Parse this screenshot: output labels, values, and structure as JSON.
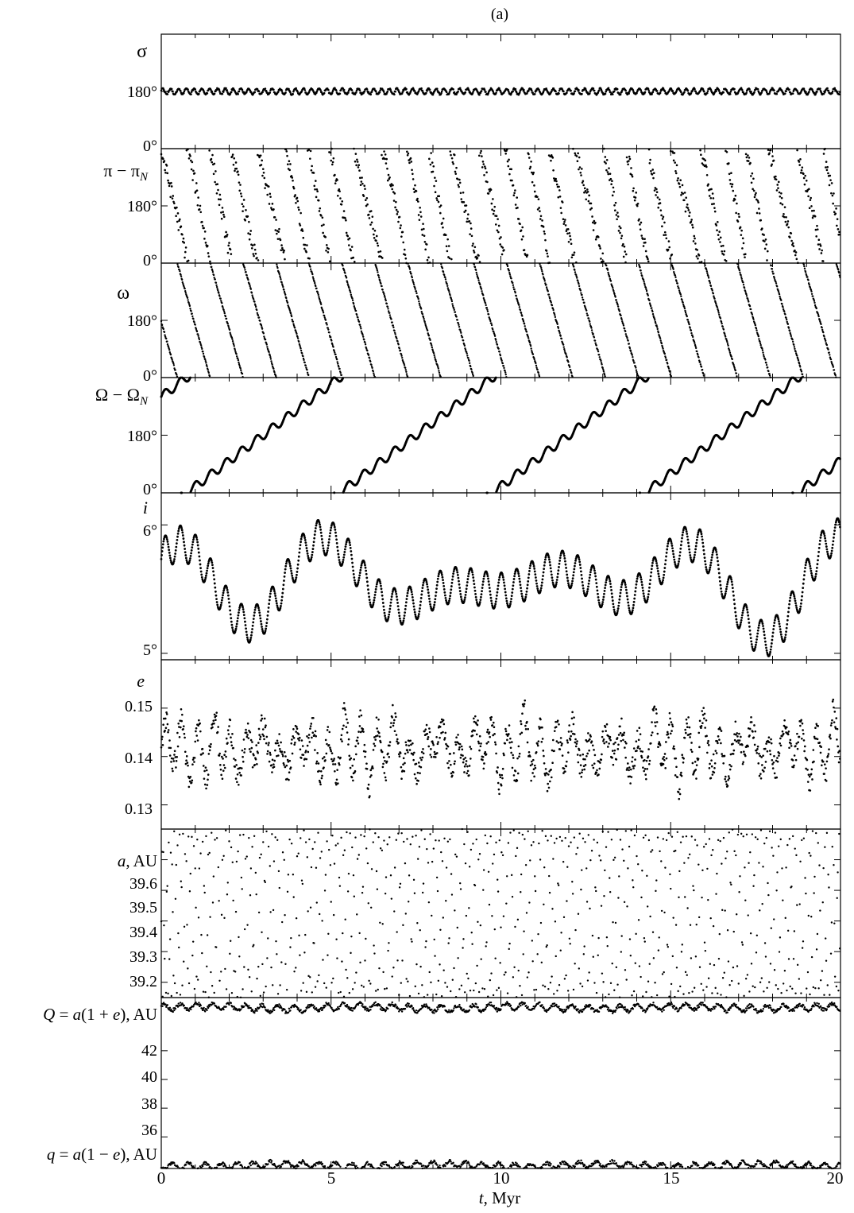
{
  "figure_label": "(a)",
  "chart_data": {
    "type": "scatter",
    "x_range": [
      0,
      20
    ],
    "x_ticks": [
      "0",
      "5",
      "10",
      "15",
      "20"
    ],
    "x_label_italic": "t",
    "x_label_rest": ", Myr",
    "panels": [
      {
        "id": "sigma",
        "label": "σ",
        "ylim": [
          0,
          360
        ],
        "ticks": [
          {
            "v": 180,
            "t": "180°"
          },
          {
            "v": 0,
            "t": "0°"
          }
        ],
        "behavior": "libration about 180° with amplitude ~10°"
      },
      {
        "id": "pi_minus_piN",
        "label": "π − π",
        "label_sub": "N",
        "ylim": [
          0,
          360
        ],
        "ticks": [
          {
            "v": 180,
            "t": "180°"
          },
          {
            "v": 0,
            "t": "0°"
          }
        ],
        "behavior": "circulation, period ~0.72 Myr, decreasing"
      },
      {
        "id": "omega",
        "label": "ω",
        "ylim": [
          0,
          360
        ],
        "ticks": [
          {
            "v": 180,
            "t": "180°"
          },
          {
            "v": 0,
            "t": "0°"
          }
        ],
        "behavior": "circulation, period ~0.97 Myr, decreasing"
      },
      {
        "id": "Omega_minus_OmegaN",
        "label": "Ω − Ω",
        "label_sub": "N",
        "ylim": [
          0,
          360
        ],
        "ticks": [
          {
            "v": 180,
            "t": "180°"
          },
          {
            "v": 0,
            "t": "0°"
          }
        ],
        "behavior": "circulation, period ~4.5 Myr, increasing"
      },
      {
        "id": "i",
        "label": "i",
        "label_italic": true,
        "ylim": [
          4.95,
          6.25
        ],
        "ticks": [
          {
            "v": 6,
            "t": "6°"
          },
          {
            "v": 5,
            "t": "5°"
          }
        ],
        "behavior": "oscillates between ~4.95° and ~6.2°"
      },
      {
        "id": "e",
        "label": "e",
        "label_italic": true,
        "ylim": [
          0.125,
          0.16
        ],
        "ticks": [
          {
            "v": 0.15,
            "t": "0.15"
          },
          {
            "v": 0.14,
            "t": "0.14"
          },
          {
            "v": 0.13,
            "t": "0.13"
          }
        ],
        "behavior": "0.127 to 0.157"
      },
      {
        "id": "a",
        "label_italic_part": "a",
        "label_rest": ", AU",
        "ylim": [
          39.15,
          39.7
        ],
        "ticks": [
          {
            "v": 39.6,
            "t": "39.6"
          },
          {
            "v": 39.5,
            "t": "39.5"
          },
          {
            "v": 39.4,
            "t": "39.4"
          },
          {
            "v": 39.3,
            "t": "39.3"
          },
          {
            "v": 39.2,
            "t": "39.2"
          }
        ],
        "behavior": "scattered 39.15 to 39.7 AU"
      },
      {
        "id": "Qq",
        "label_Q": "Q = a(1 + e), AU",
        "label_q": "q = a(1 − e), AU",
        "ylim": [
          33.8,
          45.7
        ],
        "ticks": [
          {
            "v": 42,
            "t": "42"
          },
          {
            "v": 40,
            "t": "40"
          },
          {
            "v": 38,
            "t": "38"
          },
          {
            "v": 36,
            "t": "36"
          }
        ],
        "behavior": "Q ≈ 45.0, q ≈ 34.0"
      }
    ]
  }
}
